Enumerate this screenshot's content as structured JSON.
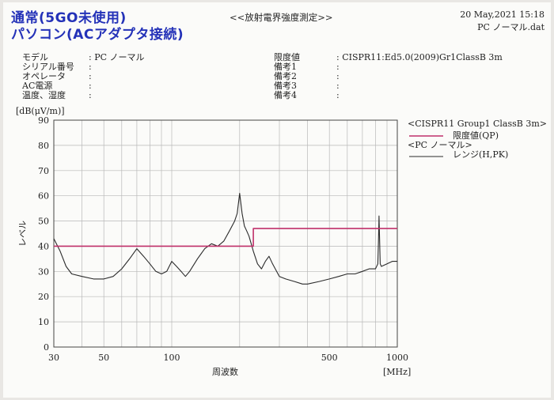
{
  "header": {
    "title_line1": "通常(5GO未使用)",
    "title_line2": "パソコン(ACアダプタ接続)",
    "measurement_name": "<<放射電界強度測定>>",
    "datetime": "20 May,2021 15:18",
    "filename": "PC ノーマル.dat"
  },
  "info_left": [
    {
      "label": "モデル",
      "value": ": PC ノーマル"
    },
    {
      "label": "シリアル番号",
      "value": ":"
    },
    {
      "label": "オペレータ",
      "value": ":"
    },
    {
      "label": "AC電源",
      "value": ":"
    },
    {
      "label": "温度、湿度",
      "value": ":"
    }
  ],
  "info_right": [
    {
      "label": "限度値",
      "value": ": CISPR11:Ed5.0(2009)Gr1ClassB 3m"
    },
    {
      "label": "備考1",
      "value": ":"
    },
    {
      "label": "備考2",
      "value": ":"
    },
    {
      "label": "備考3",
      "value": ":"
    },
    {
      "label": "備考4",
      "value": ":"
    }
  ],
  "legend": {
    "header1": "<CISPR11 Group1 ClassB 3m>",
    "entry1": "限度値(QP)",
    "header2": "<PC ノーマル>",
    "entry2": "レンジ(H,PK)"
  },
  "colors": {
    "limit": "#c0306a",
    "trace": "#2b2b2b",
    "title": "#2432b8"
  },
  "chart_data": {
    "type": "line",
    "xscale": "log",
    "xlim": [
      30,
      1000
    ],
    "ylim": [
      0,
      90
    ],
    "xticks": [
      30,
      50,
      100,
      500,
      1000
    ],
    "yticks": [
      0,
      10,
      20,
      30,
      40,
      50,
      60,
      70,
      80,
      90
    ],
    "xlabel": "周波数",
    "ylabel": "レベル",
    "yunit": "[dB(μV/m)]",
    "xunit": "[MHz]",
    "grid": true,
    "legend_position": "right",
    "series": [
      {
        "name": "限度値(QP)",
        "points": [
          [
            30,
            40
          ],
          [
            230,
            40
          ],
          [
            230,
            47
          ],
          [
            1000,
            47
          ]
        ]
      },
      {
        "name": "レンジ(H,PK)",
        "points": [
          [
            30,
            43
          ],
          [
            32,
            38
          ],
          [
            34,
            32
          ],
          [
            36,
            29
          ],
          [
            40,
            28
          ],
          [
            45,
            27
          ],
          [
            50,
            27
          ],
          [
            55,
            28
          ],
          [
            60,
            31
          ],
          [
            65,
            35
          ],
          [
            70,
            39
          ],
          [
            75,
            36
          ],
          [
            80,
            33
          ],
          [
            85,
            30
          ],
          [
            90,
            29
          ],
          [
            95,
            30
          ],
          [
            100,
            34
          ],
          [
            105,
            32
          ],
          [
            110,
            30
          ],
          [
            115,
            28
          ],
          [
            120,
            30
          ],
          [
            130,
            35
          ],
          [
            140,
            39
          ],
          [
            150,
            41
          ],
          [
            160,
            40
          ],
          [
            170,
            42
          ],
          [
            180,
            46
          ],
          [
            190,
            50
          ],
          [
            195,
            53
          ],
          [
            200,
            61
          ],
          [
            205,
            53
          ],
          [
            210,
            48
          ],
          [
            215,
            46
          ],
          [
            220,
            44
          ],
          [
            225,
            41
          ],
          [
            230,
            38
          ],
          [
            240,
            33
          ],
          [
            250,
            31
          ],
          [
            260,
            34
          ],
          [
            270,
            36
          ],
          [
            280,
            33
          ],
          [
            300,
            28
          ],
          [
            320,
            27
          ],
          [
            350,
            26
          ],
          [
            380,
            25
          ],
          [
            400,
            25
          ],
          [
            450,
            26
          ],
          [
            500,
            27
          ],
          [
            550,
            28
          ],
          [
            600,
            29
          ],
          [
            650,
            29
          ],
          [
            700,
            30
          ],
          [
            750,
            31
          ],
          [
            800,
            31
          ],
          [
            820,
            33
          ],
          [
            825,
            42
          ],
          [
            830,
            52
          ],
          [
            835,
            42
          ],
          [
            840,
            33
          ],
          [
            850,
            32
          ],
          [
            900,
            33
          ],
          [
            950,
            34
          ],
          [
            1000,
            34
          ]
        ]
      }
    ]
  }
}
